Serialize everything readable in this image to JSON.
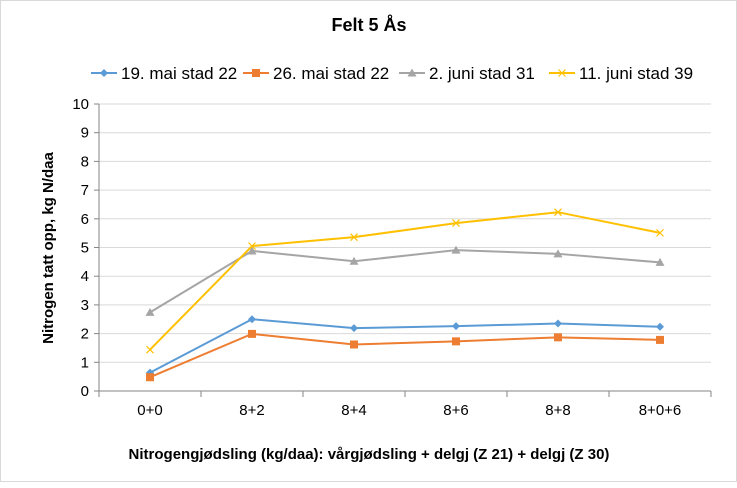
{
  "chart_data": {
    "type": "line",
    "title": "Felt 5 Ås",
    "xlabel": "Nitrogengjødsling (kg/daa): vårgjødsling + delgj (Z 21) + delgj (Z 30)",
    "ylabel": "Nitrogen tatt opp, kg N/daa",
    "ylim": [
      0,
      10
    ],
    "yticks": [
      "0",
      "1",
      "2",
      "3",
      "4",
      "5",
      "6",
      "7",
      "8",
      "9",
      "10"
    ],
    "categories": [
      "0+0",
      "8+2",
      "8+4",
      "8+6",
      "8+8",
      "8+0+6"
    ],
    "grid": true,
    "legend": "top",
    "series": [
      {
        "name": "19. mai stad 22",
        "color": "#5b9bd5",
        "marker": "diamond",
        "values": [
          0.64,
          2.5,
          2.19,
          2.26,
          2.35,
          2.24
        ]
      },
      {
        "name": "26. mai stad 22",
        "color": "#ed7d31",
        "marker": "square",
        "values": [
          0.48,
          1.99,
          1.62,
          1.73,
          1.87,
          1.78
        ]
      },
      {
        "name": "2. juni stad 31",
        "color": "#a5a5a5",
        "marker": "triangle",
        "values": [
          2.74,
          4.88,
          4.52,
          4.91,
          4.78,
          4.48
        ]
      },
      {
        "name": "11. juni stad 39",
        "color": "#ffc000",
        "marker": "x",
        "values": [
          1.44,
          5.05,
          5.36,
          5.85,
          6.23,
          5.51
        ]
      }
    ]
  }
}
